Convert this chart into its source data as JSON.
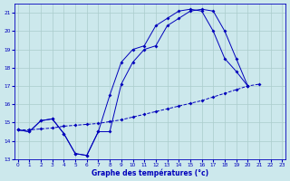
{
  "bg_color": "#cce8ec",
  "grid_color": "#aacccc",
  "line_color": "#0000bb",
  "xlim": [
    0,
    23
  ],
  "ylim": [
    13,
    21.5
  ],
  "yticks": [
    13,
    14,
    15,
    16,
    17,
    18,
    19,
    20,
    21
  ],
  "xticks": [
    0,
    1,
    2,
    3,
    4,
    5,
    6,
    7,
    8,
    9,
    10,
    11,
    12,
    13,
    14,
    15,
    16,
    17,
    18,
    19,
    20,
    21,
    22,
    23
  ],
  "xlabel": "Graphe des températures (°c)",
  "line1_x": [
    0,
    1,
    2,
    3,
    4,
    5,
    6,
    7,
    8,
    9,
    10,
    11,
    12,
    13,
    14,
    15,
    16,
    17,
    18,
    19,
    20
  ],
  "line1_y": [
    14.6,
    14.5,
    15.1,
    15.2,
    14.4,
    13.3,
    13.2,
    14.5,
    16.5,
    18.3,
    19.0,
    19.2,
    20.3,
    20.7,
    21.1,
    21.2,
    21.1,
    20.0,
    18.5,
    17.8,
    17.0
  ],
  "line2_x": [
    0,
    1,
    2,
    3,
    4,
    5,
    6,
    7,
    8,
    9,
    10,
    11,
    12,
    13,
    14,
    15,
    16,
    17,
    18,
    19,
    20,
    21,
    22,
    23
  ],
  "line2_y": [
    14.6,
    14.5,
    15.1,
    15.2,
    14.4,
    13.3,
    13.2,
    14.5,
    14.5,
    17.1,
    18.3,
    19.0,
    19.2,
    20.3,
    20.7,
    21.1,
    21.2,
    21.1,
    20.0,
    18.5,
    17.0,
    null,
    null,
    null
  ],
  "line3_x": [
    0,
    1,
    2,
    3,
    4,
    5,
    6,
    7,
    8,
    9,
    10,
    11,
    12,
    13,
    14,
    15,
    16,
    17,
    18,
    19,
    20,
    21,
    22,
    23
  ],
  "line3_y": [
    14.6,
    14.6,
    14.65,
    14.7,
    14.8,
    14.85,
    14.9,
    14.95,
    15.05,
    15.15,
    15.3,
    15.45,
    15.6,
    15.75,
    15.9,
    16.05,
    16.2,
    16.4,
    16.6,
    16.8,
    17.0,
    17.1,
    null,
    null
  ]
}
